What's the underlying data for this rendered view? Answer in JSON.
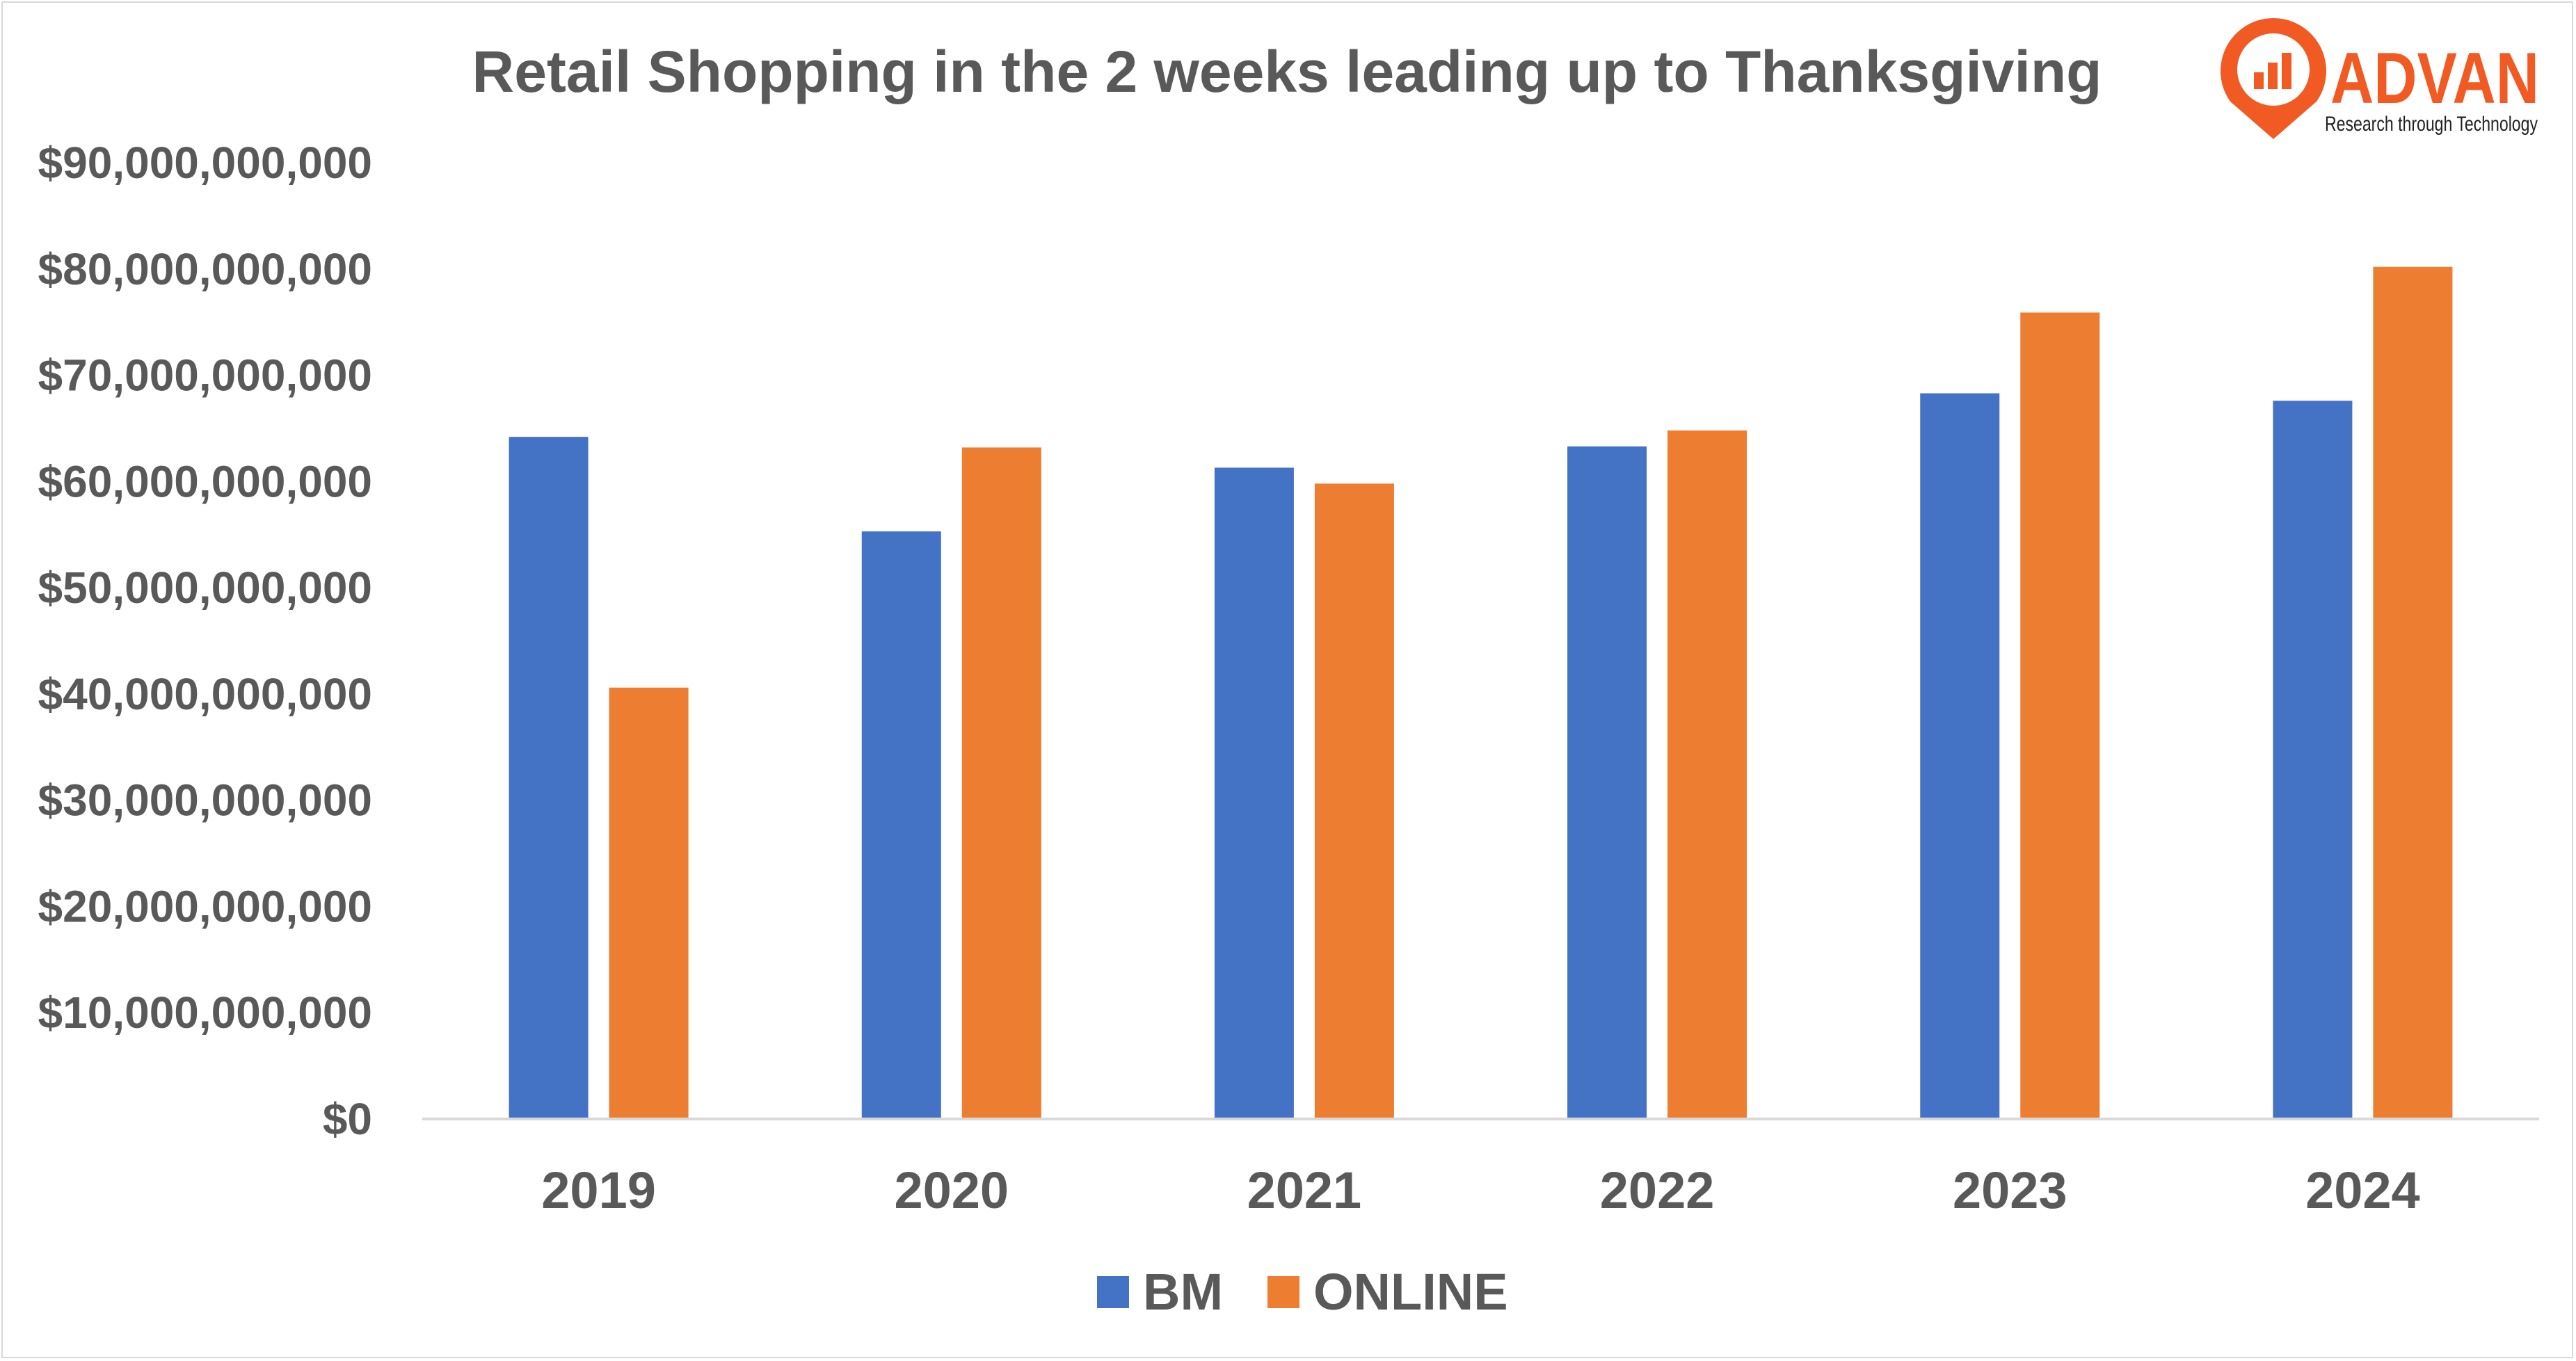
{
  "colors": {
    "bm": "#4472c4",
    "online": "#ed7d31",
    "text": "#595959",
    "axis": "#d9d9d9",
    "logo": "#f15a22"
  },
  "logo": {
    "name": "ADVAN",
    "tagline": "Research through Technology",
    "icon": "map-pin-chart-icon"
  },
  "chart_data": {
    "type": "bar",
    "title": "Retail Shopping in the 2 weeks leading up to Thanksgiving",
    "categories": [
      "2019",
      "2020",
      "2021",
      "2022",
      "2023",
      "2024"
    ],
    "series": [
      {
        "name": "BM",
        "values": [
          64200000000,
          55300000000,
          61300000000,
          63300000000,
          68300000000,
          67600000000
        ]
      },
      {
        "name": "ONLINE",
        "values": [
          40600000000,
          63200000000,
          59800000000,
          64800000000,
          75900000000,
          80200000000
        ]
      }
    ],
    "ylim": [
      0,
      90000000000
    ],
    "yticks": [
      0,
      10000000000,
      20000000000,
      30000000000,
      40000000000,
      50000000000,
      60000000000,
      70000000000,
      80000000000,
      90000000000
    ],
    "ytick_labels": [
      "$0",
      "$10,000,000,000",
      "$20,000,000,000",
      "$30,000,000,000",
      "$40,000,000,000",
      "$50,000,000,000",
      "$60,000,000,000",
      "$70,000,000,000",
      "$80,000,000,000",
      "$90,000,000,000"
    ],
    "grid": false,
    "legend": "bottom"
  }
}
